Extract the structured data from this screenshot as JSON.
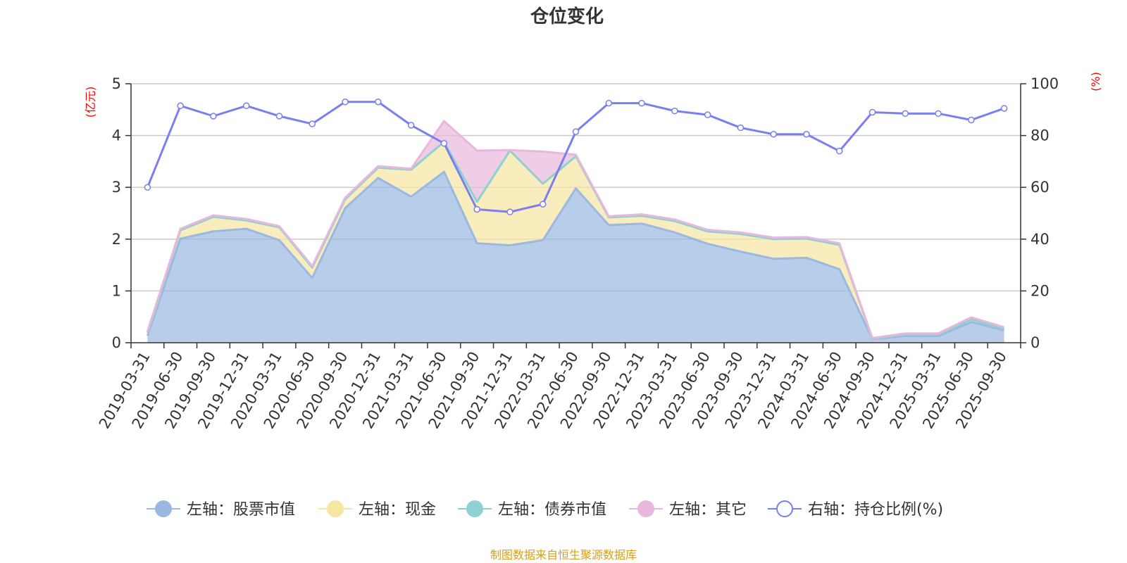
{
  "chart_data": {
    "type": "area",
    "title": "仓位变化",
    "left_axis_unit": "(亿元)",
    "right_axis_unit": "(%)",
    "left_ylim": [
      0,
      5
    ],
    "left_ticks": [
      "0",
      "1",
      "2",
      "3",
      "4",
      "5"
    ],
    "right_ylim": [
      0,
      100
    ],
    "right_ticks": [
      "0",
      "20",
      "40",
      "60",
      "80",
      "100"
    ],
    "categories": [
      "2019-03-31",
      "2019-06-30",
      "2019-09-30",
      "2019-12-31",
      "2020-03-31",
      "2020-06-30",
      "2020-09-30",
      "2020-12-31",
      "2021-03-31",
      "2021-06-30",
      "2021-09-30",
      "2021-12-31",
      "2022-03-31",
      "2022-06-30",
      "2022-09-30",
      "2022-12-31",
      "2023-03-31",
      "2023-06-30",
      "2023-09-30",
      "2023-12-31",
      "2024-03-31",
      "2024-06-30",
      "2024-09-30",
      "2024-12-31",
      "2025-03-31",
      "2025-06-30",
      "2025-09-30"
    ],
    "stacked_series": [
      {
        "name": "左轴：股票市值",
        "color": "#9ab8e0",
        "values": [
          0.13,
          2.01,
          2.15,
          2.2,
          1.98,
          1.25,
          2.6,
          3.18,
          2.82,
          3.3,
          1.92,
          1.88,
          1.98,
          2.98,
          2.27,
          2.3,
          2.13,
          1.91,
          1.76,
          1.62,
          1.64,
          1.42,
          0.07,
          0.13,
          0.13,
          0.4,
          0.24
        ]
      },
      {
        "name": "左轴：现金",
        "color": "#f7e6a2",
        "values": [
          0.06,
          0.16,
          0.28,
          0.16,
          0.25,
          0.2,
          0.17,
          0.2,
          0.52,
          0.58,
          0.8,
          1.83,
          1.09,
          0.62,
          0.15,
          0.15,
          0.22,
          0.24,
          0.34,
          0.38,
          0.37,
          0.47,
          0.01,
          0.03,
          0.03,
          0.05,
          0.03
        ]
      },
      {
        "name": "左轴：债券市值",
        "color": "#8fd0d0",
        "values": [
          0,
          0,
          0,
          0,
          0,
          0,
          0,
          0,
          0,
          0,
          0,
          0,
          0,
          0,
          0,
          0,
          0,
          0,
          0,
          0,
          0,
          0,
          0,
          0,
          0,
          0,
          0
        ]
      },
      {
        "name": "左轴：其它",
        "color": "#e8b8dc",
        "values": [
          0.03,
          0.03,
          0.03,
          0.03,
          0.02,
          0.03,
          0.03,
          0.03,
          0.02,
          0.4,
          0.99,
          0.01,
          0.62,
          0.03,
          0.02,
          0.03,
          0.03,
          0.03,
          0.03,
          0.03,
          0.03,
          0.03,
          0.01,
          0.02,
          0.02,
          0.04,
          0.03
        ]
      }
    ],
    "line_series": {
      "name": "右轴：持仓比例(%)",
      "color": "#7a7ef0",
      "values": [
        60,
        91.5,
        87.5,
        91.5,
        87.5,
        84.5,
        93,
        93,
        84,
        77,
        51.5,
        50.5,
        53.5,
        81.5,
        92.5,
        92.5,
        89.5,
        88,
        83,
        80.5,
        80.5,
        74,
        89,
        88.5,
        88.5,
        86,
        90.5
      ]
    },
    "legend_position": "bottom",
    "source": "制图数据来自恒生聚源数据库"
  }
}
